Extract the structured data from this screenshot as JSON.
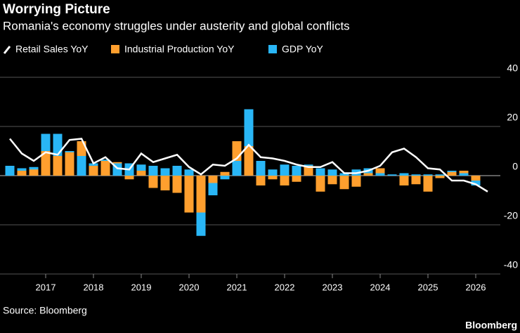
{
  "chart_data": {
    "type": "bar",
    "title": "Worrying Picture",
    "subtitle": "Romania's economy struggles under austerity and global conflicts",
    "source": "Source: Bloomberg",
    "brand": "Bloomberg",
    "categories": [
      null,
      null,
      null,
      "2017",
      null,
      null,
      null,
      "2018",
      null,
      null,
      null,
      "2019",
      null,
      null,
      null,
      "2020",
      null,
      null,
      null,
      "2021",
      null,
      null,
      null,
      "2022",
      null,
      null,
      null,
      "2023",
      null,
      null,
      null,
      "2024",
      null,
      null,
      null,
      "2025",
      null,
      null,
      null,
      "2026",
      null
    ],
    "series": [
      {
        "name": "Retail Sales YoY",
        "kind": "line",
        "color": "#ffffff",
        "values": [
          15,
          9,
          6,
          9.5,
          8.5,
          14.5,
          15,
          5,
          7.5,
          3,
          2.5,
          9,
          5.5,
          7,
          8.5,
          3.5,
          0.5,
          4.5,
          4,
          7,
          12.5,
          7.5,
          7,
          6,
          4.5,
          3.5,
          3.5,
          5.5,
          1,
          1,
          2,
          4,
          9.5,
          11,
          7.5,
          3,
          2.5,
          -2,
          -2,
          -3.5,
          -6.5
        ]
      },
      {
        "name": "Industrial Production YoY",
        "kind": "bar",
        "color": "#ff9f2e",
        "values": [
          0,
          2,
          2.5,
          10,
          8,
          9.5,
          14,
          4,
          6,
          5.5,
          -1.5,
          2,
          -5,
          -6,
          -7,
          -15,
          -15,
          -3,
          1.5,
          14,
          12,
          -4,
          -1.5,
          -4,
          -2.5,
          4,
          -6.5,
          -3.5,
          -5.5,
          -4.5,
          1,
          3,
          0,
          -4,
          -3.5,
          -6.5,
          -1,
          1.5,
          2,
          -2,
          null
        ]
      },
      {
        "name": "GDP YoY",
        "kind": "bar",
        "color": "#29b6f6",
        "values": [
          4,
          3,
          3.5,
          17,
          17,
          10,
          8,
          5,
          6.5,
          5,
          5,
          4.5,
          4,
          3,
          4,
          2.5,
          -24.5,
          -8,
          -1.5,
          6,
          27,
          6,
          2.5,
          4.5,
          4,
          4.5,
          3,
          2.5,
          1,
          2.5,
          3,
          1,
          0.5,
          1,
          0.5,
          0.5,
          0.5,
          2,
          1,
          -4,
          null
        ]
      }
    ],
    "ylim": [
      -40,
      45
    ],
    "yticks": [
      -40,
      -20,
      0,
      20,
      40
    ],
    "grid": true
  }
}
